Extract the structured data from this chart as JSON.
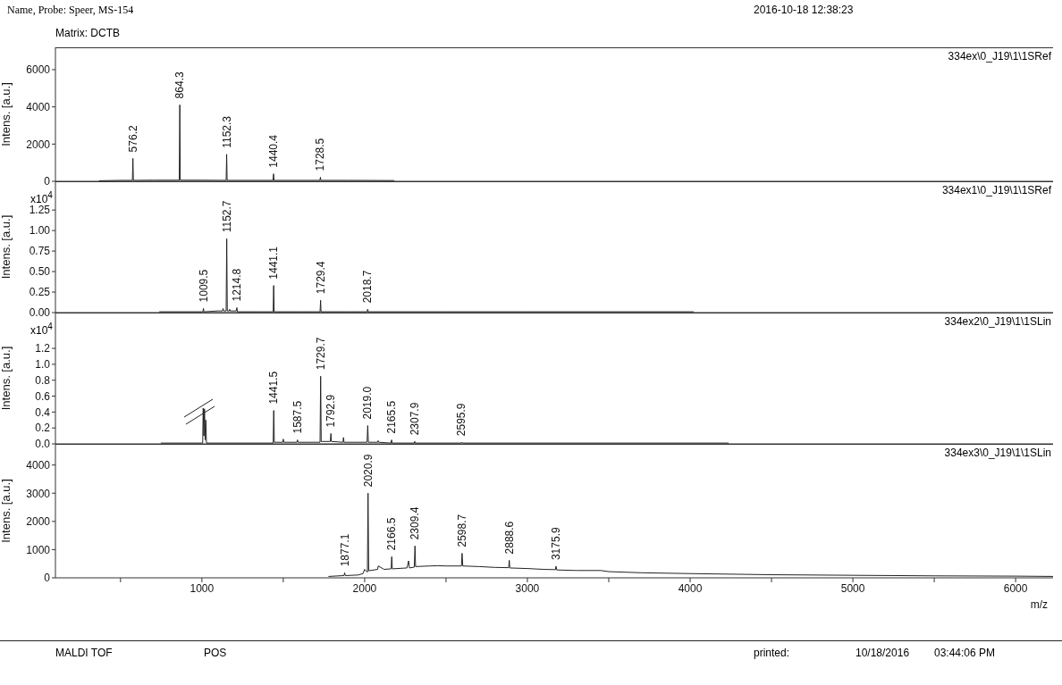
{
  "chart_data": [
    {
      "type": "line",
      "title": "334ex\\0_J19\\1\\1SRef",
      "ylabel": "Intens. [a.u.]",
      "color": "#222222",
      "xlim": [
        100,
        6230
      ],
      "ylim": [
        0,
        7200
      ],
      "yticks": [
        0,
        2000,
        4000,
        6000
      ],
      "tick_labels": "y",
      "x": [
        370,
        500,
        573,
        576.2,
        579,
        700,
        861,
        864.3,
        867,
        1000,
        1149,
        1152.3,
        1155,
        1300,
        1437,
        1440.4,
        1443,
        1600,
        1725,
        1728.5,
        1731,
        1900,
        2180
      ],
      "values": [
        30,
        50,
        50,
        1230,
        50,
        60,
        60,
        4110,
        60,
        60,
        50,
        1450,
        50,
        50,
        50,
        400,
        50,
        50,
        50,
        220,
        50,
        50,
        40
      ],
      "annotations": [
        "Name, Probe:  Speer, MS-154",
        "Matrix:  DCTB",
        "2016-10-18 12:38:23",
        {
          "text": "576.2",
          "x": 576.2,
          "y": 1230
        },
        {
          "text": "864.3",
          "x": 864.3,
          "y": 4110
        },
        {
          "text": "1152.3",
          "x": 1152.3,
          "y": 1450
        },
        {
          "text": "1440.4",
          "x": 1440.4,
          "y": 400
        },
        {
          "text": "1728.5",
          "x": 1728.5,
          "y": 220
        }
      ]
    },
    {
      "type": "line",
      "title": "334ex1\\0_J19\\1\\1SRef",
      "ylabel": "Intens. [a.u.]",
      "color": "#222222",
      "xlim": [
        100,
        6230
      ],
      "ylim": [
        0,
        1.6
      ],
      "yticks": [
        {
          "value": 0,
          "label": "0.00"
        },
        0.25,
        {
          "value": 0.5,
          "label": "0.50"
        },
        0.75,
        {
          "value": 1,
          "label": "1.00"
        },
        1.25
      ],
      "tick_labels": "y",
      "x": [
        740,
        1006,
        1009.5,
        1012,
        1100,
        1127,
        1130,
        1133,
        1149,
        1152.7,
        1156,
        1168,
        1171,
        1174,
        1211,
        1214.8,
        1218,
        1350,
        1438,
        1441.1,
        1444,
        1600,
        1726,
        1729.4,
        1732,
        1900,
        2015,
        2018.7,
        2022,
        2500,
        3000,
        4020
      ],
      "values": [
        0.01,
        0.01,
        0.05,
        0.01,
        0.02,
        0.02,
        0.05,
        0.02,
        0.02,
        0.9,
        0.02,
        0.02,
        0.04,
        0.02,
        0.02,
        0.06,
        0.01,
        0.01,
        0.01,
        0.33,
        0.01,
        0.01,
        0.01,
        0.15,
        0.01,
        0.01,
        0.01,
        0.04,
        0.01,
        0.01,
        0.01,
        0.01
      ],
      "annotations": [
        "x10$^{4}$",
        {
          "text": "1009.5",
          "x": 1009.5,
          "y": 0.05
        },
        {
          "text": "1152.7",
          "x": 1152.7,
          "y": 0.9
        },
        {
          "text": "1214.8",
          "x": 1214.8,
          "y": 0.06
        },
        {
          "text": "1441.1",
          "x": 1441.1,
          "y": 0.33
        },
        {
          "text": "1729.4",
          "x": 1729.4,
          "y": 0.15
        },
        {
          "text": "2018.7",
          "x": 2018.7,
          "y": 0.04
        }
      ]
    },
    {
      "type": "line",
      "title": "334ex2\\0_J19\\1\\1SLin",
      "ylabel": "Intens. [a.u.]",
      "color": "#222222",
      "xlim": [
        100,
        6230
      ],
      "ylim": [
        0,
        1.65
      ],
      "yticks": [
        {
          "value": 0,
          "label": "0.0"
        },
        0.2,
        0.4,
        0.6,
        0.8,
        {
          "value": 1,
          "label": "1.0"
        },
        1.2
      ],
      "tick_labels": "y",
      "x": [
        750,
        1000,
        1005,
        1008,
        1012,
        1016,
        1020,
        1024,
        1028,
        1300,
        1438,
        1441.5,
        1445,
        1497,
        1500,
        1503,
        1584,
        1587.5,
        1591,
        1726,
        1729.7,
        1733,
        1789,
        1792.9,
        1796,
        1867,
        1870,
        1873,
        2015,
        2019,
        2023,
        2080,
        2083,
        2086,
        2162,
        2165.5,
        2169,
        2304,
        2307.9,
        2311,
        2592,
        2595.9,
        2600,
        3000,
        4234
      ],
      "values": [
        0.01,
        0.01,
        0.01,
        0.45,
        0.1,
        0.44,
        0.05,
        0.3,
        0.01,
        0.01,
        0.01,
        0.42,
        0.02,
        0.02,
        0.06,
        0.02,
        0.02,
        0.05,
        0.02,
        0.02,
        0.85,
        0.03,
        0.03,
        0.13,
        0.03,
        0.02,
        0.08,
        0.02,
        0.02,
        0.23,
        0.02,
        0.02,
        0.04,
        0.02,
        0.01,
        0.05,
        0.01,
        0.01,
        0.03,
        0.01,
        0.01,
        0.02,
        0.01,
        0.01,
        0.01
      ],
      "annotations": [
        "x10$^{4}$",
        {
          "text": "1441.5",
          "x": 1441.5,
          "y": 0.42
        },
        {
          "text": "1587.5",
          "x": 1587.5,
          "y": 0.05
        },
        {
          "text": "1729.7",
          "x": 1729.7,
          "y": 0.85
        },
        {
          "text": "1792.9",
          "x": 1792.9,
          "y": 0.13
        },
        {
          "text": "2019.0",
          "x": 2019,
          "y": 0.23
        },
        {
          "text": "2165.5",
          "x": 2165.5,
          "y": 0.05
        },
        {
          "text": "2307.9",
          "x": 2307.9,
          "y": 0.03
        },
        {
          "text": "2595.9",
          "x": 2595.9,
          "y": 0.02
        }
      ]
    },
    {
      "type": "line",
      "title": "334ex3\\0_J19\\1\\1SLin",
      "ylabel": "Intens. [a.u.]",
      "xlabel": "m/z",
      "color": "#222222",
      "xlim": [
        100,
        6230
      ],
      "xticks": [
        {
          "value": 500,
          "label": null
        },
        1000,
        {
          "value": 1500,
          "label": null
        },
        2000,
        {
          "value": 2500,
          "label": null
        },
        3000,
        {
          "value": 3500,
          "label": null
        },
        4000,
        {
          "value": 4500,
          "label": null
        },
        5000,
        {
          "value": 5500,
          "label": null
        },
        6000
      ],
      "ylim": [
        0,
        4750
      ],
      "yticks": [
        0,
        1000,
        2000,
        3000,
        4000
      ],
      "x": [
        1780,
        1873,
        1877.1,
        1881,
        1960,
        1990,
        2000,
        2017,
        2020.9,
        2025,
        2080,
        2083,
        2120,
        2163,
        2166.5,
        2170,
        2260,
        2270,
        2275,
        2305,
        2309.4,
        2313,
        2400,
        2450,
        2500,
        2595,
        2598.7,
        2603,
        2700,
        2800,
        2885,
        2888.6,
        2892,
        3000,
        3100,
        3172,
        3175.9,
        3180,
        3300,
        3450,
        3500,
        3700,
        4000,
        4500,
        5000,
        5500,
        6000,
        6230
      ],
      "values": [
        50,
        80,
        180,
        80,
        100,
        150,
        300,
        200,
        3000,
        250,
        300,
        420,
        300,
        320,
        750,
        320,
        350,
        600,
        350,
        380,
        1130,
        400,
        420,
        430,
        420,
        420,
        870,
        420,
        400,
        370,
        360,
        620,
        350,
        330,
        300,
        290,
        410,
        280,
        260,
        260,
        220,
        180,
        150,
        110,
        90,
        70,
        60,
        50
      ],
      "annotations": [
        "MALDI TOF",
        "POS",
        "printed:",
        "10/18/2016",
        "03:44:06 PM",
        {
          "text": "1877.1",
          "x": 1877.1,
          "y": 180
        },
        {
          "text": "2020.9",
          "x": 2020.9,
          "y": 3000
        },
        {
          "text": "2166.5",
          "x": 2166.5,
          "y": 750
        },
        {
          "text": "2309.4",
          "x": 2309.4,
          "y": 1130
        },
        {
          "text": "2598.7",
          "x": 2598.7,
          "y": 870
        },
        {
          "text": "2888.6",
          "x": 2888.6,
          "y": 620
        },
        {
          "text": "3175.9",
          "x": 3175.9,
          "y": 410
        }
      ]
    }
  ]
}
